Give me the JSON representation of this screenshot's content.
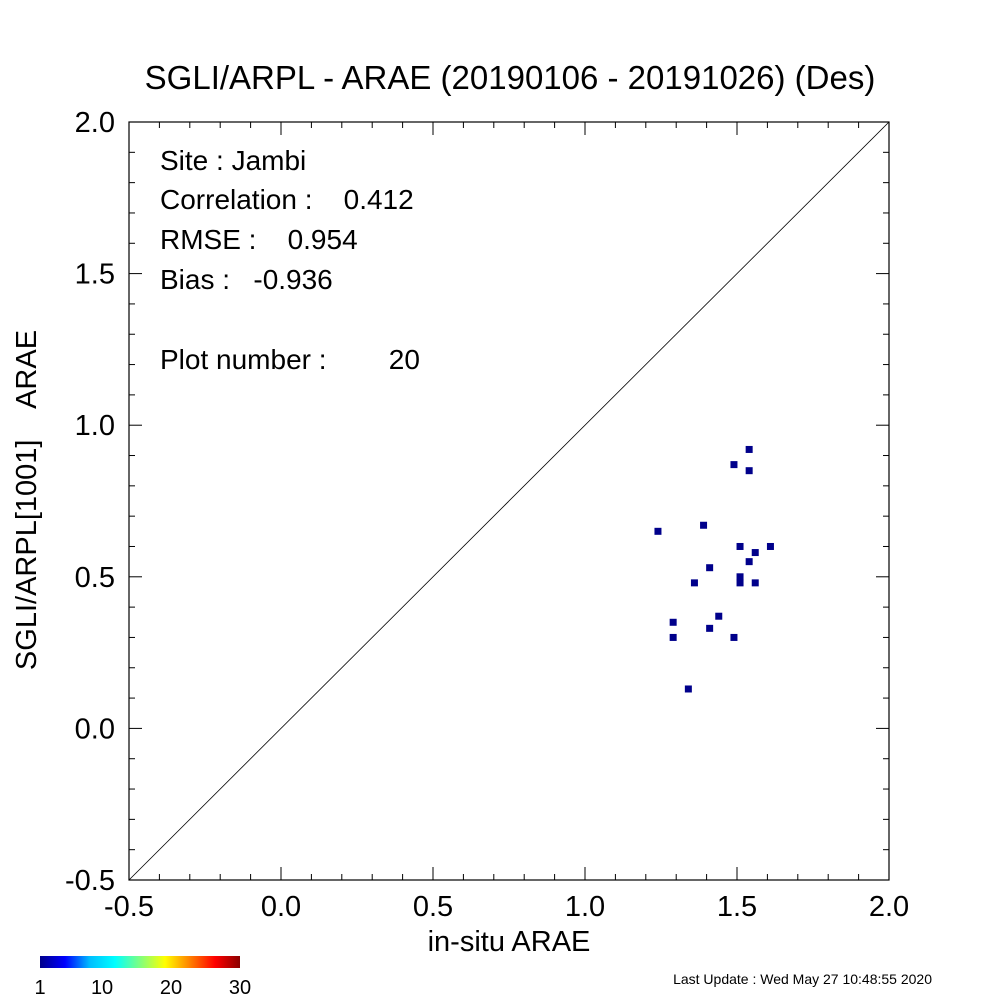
{
  "chart_data": {
    "type": "scatter",
    "title": "SGLI/ARPL - ARAE (20190106 - 20191026) (Des)",
    "xlabel": "in-situ ARAE",
    "ylabel": "SGLI/ARPL[1001]    ARAE",
    "xlim": [
      -0.5,
      2.0
    ],
    "ylim": [
      -0.5,
      2.0
    ],
    "xticks": [
      "-0.5",
      "0.0",
      "0.5",
      "1.0",
      "1.5",
      "2.0"
    ],
    "yticks": [
      "-0.5",
      "0.0",
      "0.5",
      "1.0",
      "1.5",
      "2.0"
    ],
    "one_to_one_line": true,
    "grid": false,
    "point_color": "#00008b",
    "points": [
      {
        "x": 1.24,
        "y": 0.65
      },
      {
        "x": 1.29,
        "y": 0.35
      },
      {
        "x": 1.29,
        "y": 0.3
      },
      {
        "x": 1.34,
        "y": 0.13
      },
      {
        "x": 1.36,
        "y": 0.48
      },
      {
        "x": 1.39,
        "y": 0.67
      },
      {
        "x": 1.41,
        "y": 0.53
      },
      {
        "x": 1.41,
        "y": 0.33
      },
      {
        "x": 1.44,
        "y": 0.37
      },
      {
        "x": 1.49,
        "y": 0.87
      },
      {
        "x": 1.49,
        "y": 0.3
      },
      {
        "x": 1.51,
        "y": 0.6
      },
      {
        "x": 1.51,
        "y": 0.5
      },
      {
        "x": 1.51,
        "y": 0.48
      },
      {
        "x": 1.54,
        "y": 0.92
      },
      {
        "x": 1.54,
        "y": 0.85
      },
      {
        "x": 1.54,
        "y": 0.55
      },
      {
        "x": 1.56,
        "y": 0.58
      },
      {
        "x": 1.56,
        "y": 0.48
      },
      {
        "x": 1.61,
        "y": 0.6
      }
    ],
    "stats": {
      "site": "Site : Jambi",
      "correlation": "Correlation :    0.412",
      "rmse": "RMSE :    0.954",
      "bias": "Bias :   -0.936",
      "plot_number": "Plot number :        20"
    },
    "colorbar": {
      "ticks": [
        "1",
        "10",
        "20",
        "30"
      ],
      "colors": [
        "#00008b",
        "#0000ff",
        "#00bfff",
        "#00ffff",
        "#7fff7f",
        "#ffff00",
        "#ff8000",
        "#ff0000",
        "#8b0000"
      ]
    }
  },
  "footer": {
    "last_update": "Last Update : Wed May 27 10:48:55 2020"
  }
}
